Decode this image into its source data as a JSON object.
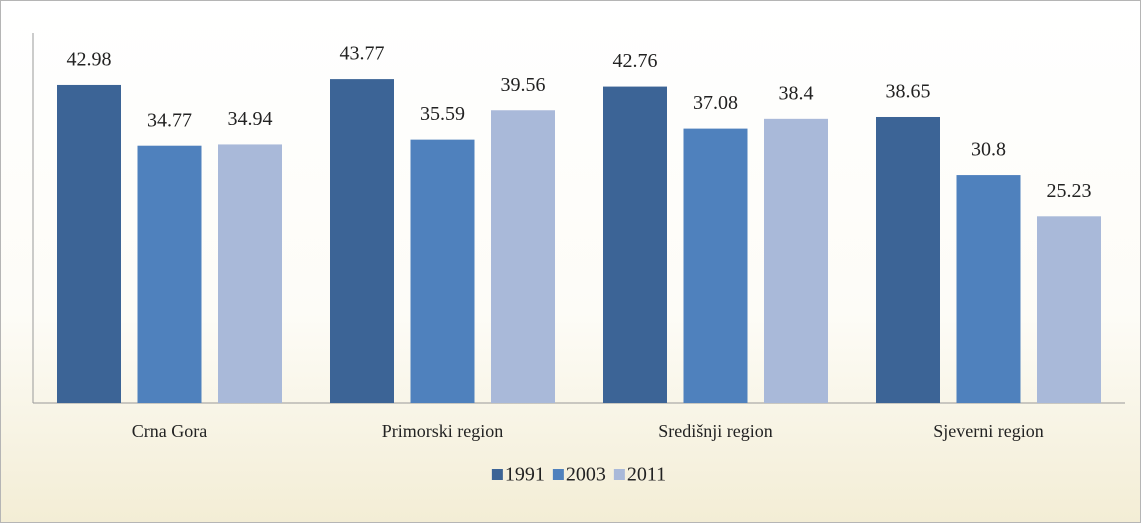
{
  "chart_data": {
    "type": "bar",
    "categories": [
      "Crna Gora",
      "Primorski region",
      "Središnji region",
      "Sjeverni region"
    ],
    "series": [
      {
        "name": "1991",
        "color": "#3c6496",
        "values": [
          42.98,
          43.77,
          42.76,
          38.65
        ]
      },
      {
        "name": "2003",
        "color": "#4f81bd",
        "values": [
          34.77,
          35.59,
          37.08,
          30.8
        ]
      },
      {
        "name": "2011",
        "color": "#a9b9d9",
        "values": [
          34.94,
          39.56,
          38.4,
          25.23
        ]
      }
    ],
    "ylim": [
      0,
      50
    ],
    "legend": "bottom"
  }
}
